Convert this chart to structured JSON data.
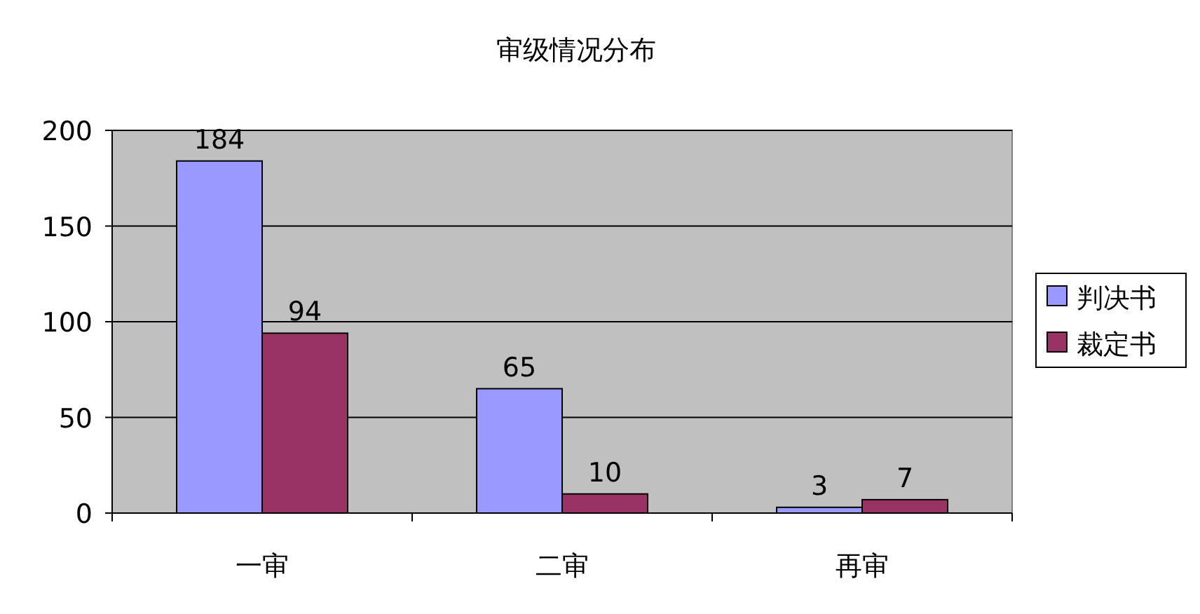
{
  "chart_data": {
    "type": "bar",
    "title": "审级情况分布",
    "categories": [
      "一审",
      "二审",
      "再审"
    ],
    "series": [
      {
        "name": "判决书",
        "color": "#9999ff",
        "values": [
          184,
          65,
          3
        ]
      },
      {
        "name": "裁定书",
        "color": "#993366",
        "values": [
          94,
          10,
          7
        ]
      }
    ],
    "ylim": [
      0,
      200
    ],
    "yticks": [
      0,
      50,
      100,
      150,
      200
    ],
    "grid": "y",
    "legend": "right",
    "data_labels": true
  }
}
